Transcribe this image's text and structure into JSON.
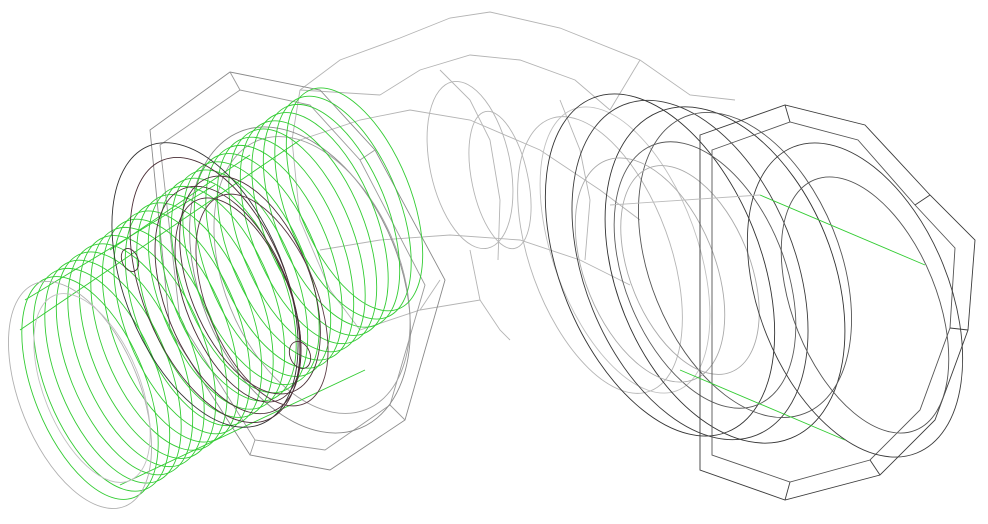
{
  "scene": {
    "subject": "",
    "render_style": "wireframe",
    "colors": {
      "background": "#ffffff",
      "body_edge": "#b4b4b4",
      "nut_edge": "#3c3c3c",
      "seal_edge": "#4a2e36",
      "thread_edge": "#33cc33",
      "axis_line": "#33cc33"
    }
  }
}
